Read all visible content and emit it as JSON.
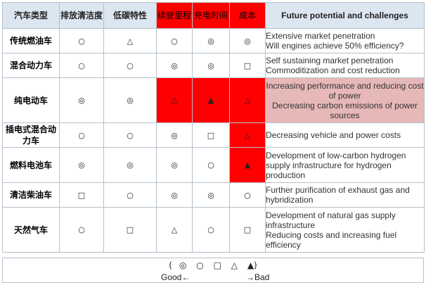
{
  "headers": {
    "type": "汽车类型",
    "emission": "排放清洁度",
    "low_carbon": "低碳特性",
    "range": "续驶里程",
    "charge_time": "充电时间",
    "cost": "成本",
    "future": "Future potential and challenges"
  },
  "rows": [
    {
      "type": "传统燃油车",
      "emission": "○",
      "low_carbon": "△",
      "range": "○",
      "charge_time": "◎",
      "cost": "◎",
      "future": [
        "Extensive market penetration",
        "Will engines achieve 50% efficiency?"
      ]
    },
    {
      "type": "混合动力车",
      "emission": "○",
      "low_carbon": "○",
      "range": "◎",
      "charge_time": "◎",
      "cost": "□",
      "future": [
        "Self sustaining market penetration",
        "Commoditization and cost reduction"
      ]
    },
    {
      "type": "纯电动车",
      "emission": "◎",
      "low_carbon": "◎",
      "range": "△",
      "charge_time": "▲",
      "cost": "△",
      "future": [
        "Increasing performance and reducing cost of power",
        "Decreasing carbon emissions of power sources"
      ]
    },
    {
      "type": "插电式混合动力车",
      "emission": "○",
      "low_carbon": "○",
      "range": "◎",
      "charge_time": "□",
      "cost": "△",
      "future": [
        "Decreasing vehicle and power costs"
      ]
    },
    {
      "type": "燃料电池车",
      "emission": "◎",
      "low_carbon": "◎",
      "range": "◎",
      "charge_time": "○",
      "cost": "▲",
      "future": [
        "Development of low-carbon hydrogen",
        "supply infrastructure for hydrogen",
        "production"
      ]
    },
    {
      "type": "清洁柴油车",
      "emission": "□",
      "low_carbon": "○",
      "range": "◎",
      "charge_time": "◎",
      "cost": "○",
      "future": [
        "Further purification of exhaust gas and",
        "hybridization"
      ]
    },
    {
      "type": "天然气车",
      "emission": "○",
      "low_carbon": "□",
      "range": "△",
      "charge_time": "○",
      "cost": "□",
      "future": [
        "Development of natural gas supply",
        "infrastructure",
        "Reducing costs and increasing fuel",
        "efficiency"
      ]
    }
  ],
  "legend": {
    "open": "(",
    "symbols": [
      "◎",
      "○",
      "□",
      "△",
      "▲)"
    ],
    "good": "Good←",
    "bad": "→Bad"
  },
  "colors": {
    "highlight_red": "#ff0000",
    "highlight_pink": "#e6b8b7",
    "header_blue": "#dce6f1",
    "border": "#b6c0cc"
  }
}
